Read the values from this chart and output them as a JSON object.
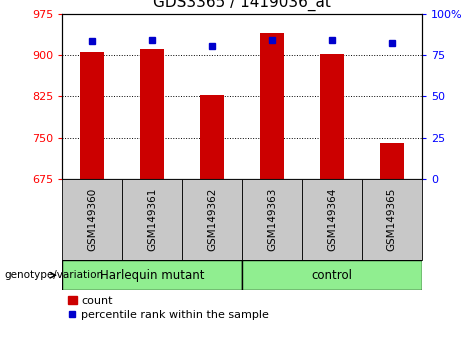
{
  "title": "GDS3365 / 1419036_at",
  "samples": [
    "GSM149360",
    "GSM149361",
    "GSM149362",
    "GSM149363",
    "GSM149364",
    "GSM149365"
  ],
  "count_values": [
    906,
    912,
    828,
    940,
    902,
    740
  ],
  "percentile_values": [
    83.5,
    84.5,
    80.5,
    84.0,
    84.0,
    82.5
  ],
  "ylim_left": [
    675,
    975
  ],
  "ylim_right": [
    0,
    100
  ],
  "yticks_left": [
    675,
    750,
    825,
    900,
    975
  ],
  "yticks_right": [
    0,
    25,
    50,
    75,
    100
  ],
  "ytick_right_labels": [
    "0",
    "25",
    "50",
    "75",
    "100%"
  ],
  "bar_color": "#CC0000",
  "percentile_color": "#0000CC",
  "groups": [
    {
      "label": "Harlequin mutant",
      "n": 3
    },
    {
      "label": "control",
      "n": 3
    }
  ],
  "group_label_x": "genotype/variation",
  "legend_count_label": "count",
  "legend_percentile_label": "percentile rank within the sample",
  "group_row_bg": "#90EE90",
  "xtick_bg": "#C8C8C8"
}
